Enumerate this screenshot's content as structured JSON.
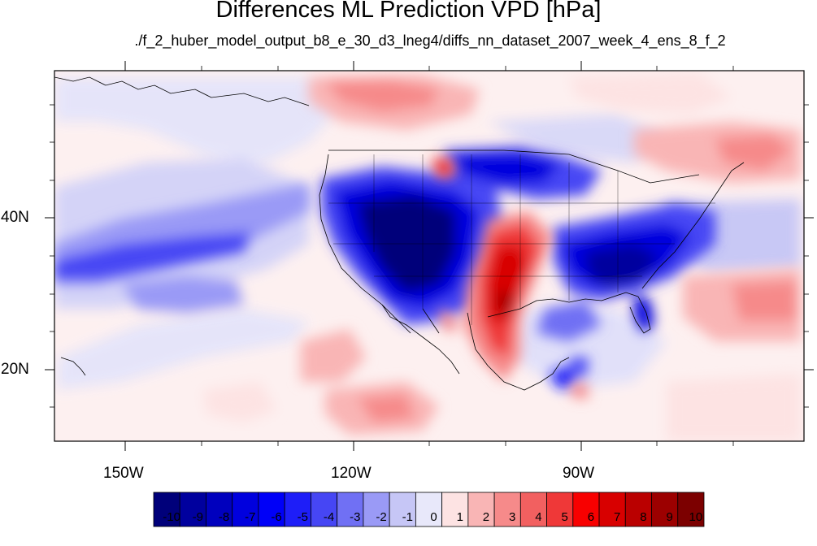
{
  "title": "Differences ML Prediction VPD [hPa]",
  "subtitle": "./f_2_huber_model_output_b8_e_30_d3_lneg4/diffs_nn_dataset_2007_week_4_ens_8_f_2",
  "map": {
    "lat_ticks": [
      "40N",
      "20N"
    ],
    "lon_ticks": [
      "150W",
      "120W",
      "90W"
    ]
  },
  "colorbar": {
    "labels": [
      "-10",
      "-9",
      "-8",
      "-7",
      "-6",
      "-5",
      "-4",
      "-3",
      "-2",
      "-1",
      "0",
      "1",
      "2",
      "3",
      "4",
      "5",
      "6",
      "7",
      "8",
      "9",
      "10"
    ],
    "colors": [
      "#00007a",
      "#00009e",
      "#0000be",
      "#0000de",
      "#0000f8",
      "#1e1ef8",
      "#4646f4",
      "#7070f4",
      "#9a9af6",
      "#c6c6f6",
      "#e8e8fa",
      "#fde3e3",
      "#f9b5b5",
      "#f68a8a",
      "#f26060",
      "#ef3838",
      "#f80000",
      "#d80000",
      "#ba0000",
      "#9c0000",
      "#7c0000"
    ]
  }
}
